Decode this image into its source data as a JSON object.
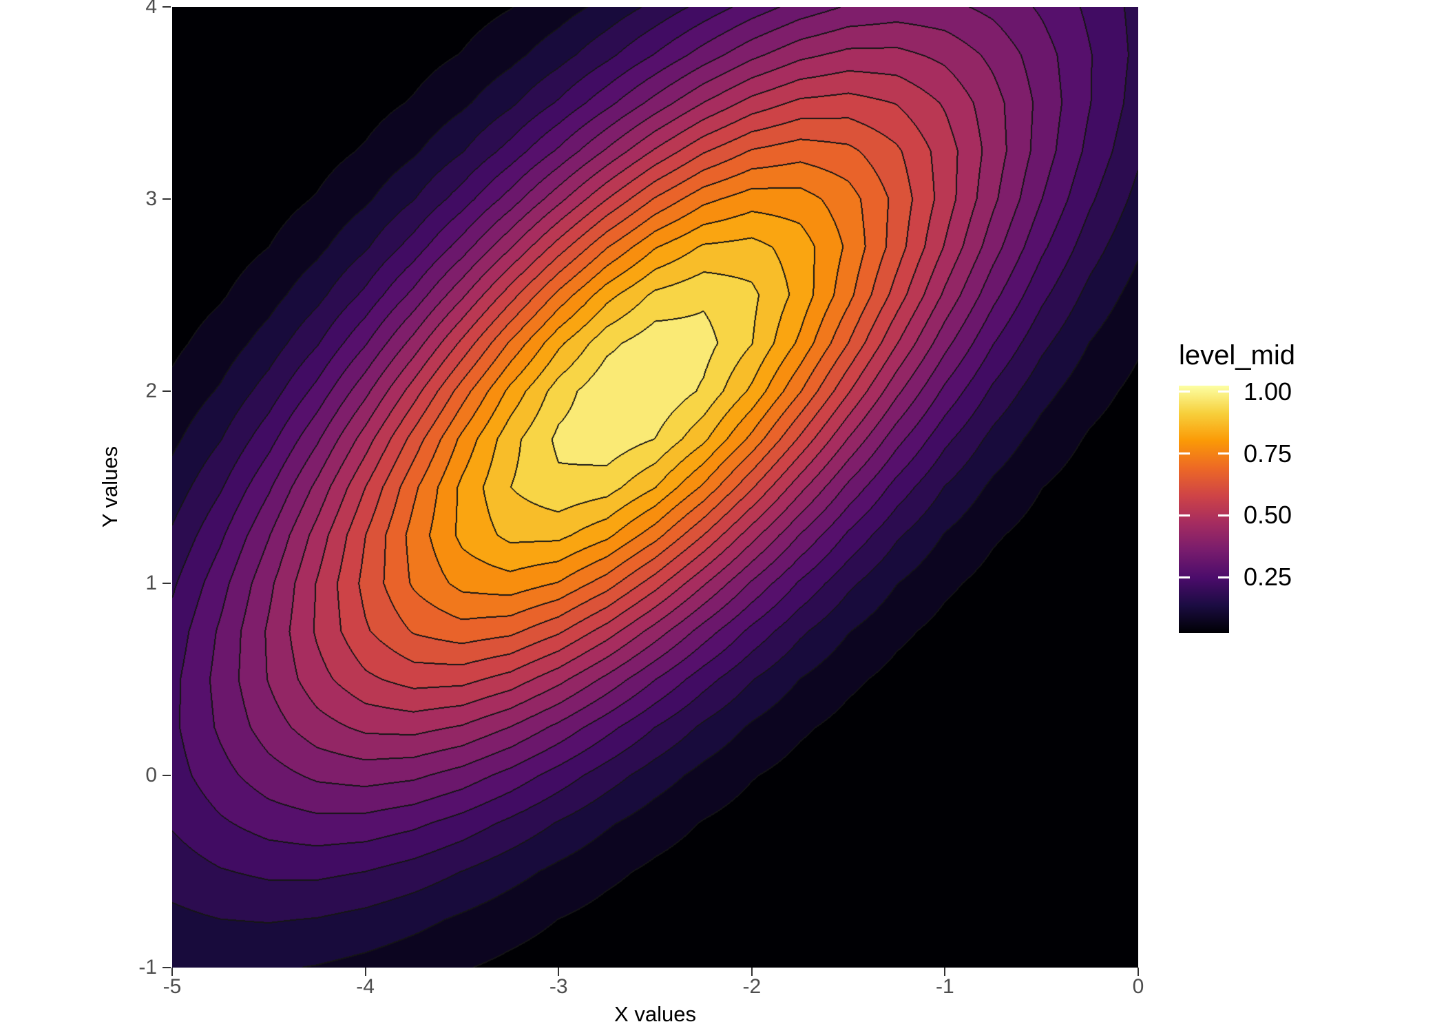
{
  "chart_data": {
    "type": "filled_contour",
    "title": "",
    "xlabel": "X values",
    "ylabel": "Y values",
    "xlim": [
      -5,
      0
    ],
    "ylim": [
      -1,
      4
    ],
    "x_tick_values": [
      -5,
      -4,
      -3,
      -2,
      -1,
      0
    ],
    "x_tick_labels": [
      "-5",
      "-4",
      "-3",
      "-2",
      "-1",
      "0"
    ],
    "y_tick_values": [
      4,
      3,
      2,
      1,
      0,
      -1
    ],
    "y_tick_labels": [
      "4",
      "3",
      "2",
      "1",
      "0",
      "-1"
    ],
    "surface": {
      "description": "bivariate gaussian bump normalized to peak 1.0, elliptical contours tilted along y=x",
      "center_x": -2.6,
      "center_y": 2.0,
      "sigma_x": 1.42,
      "sigma_y": 1.42,
      "rho": 0.7,
      "peak": 1.0,
      "grid_n": 21
    },
    "bands": {
      "break_step": 0.05,
      "min": 0.0,
      "max": 1.0,
      "count": 20,
      "colors": [
        "#000004",
        "#0C0520",
        "#180B3C",
        "#2C0C50",
        "#410C63",
        "#56106C",
        "#6B176C",
        "#7F1E6B",
        "#932665",
        "#A72D5F",
        "#BA3853",
        "#CD4347",
        "#DB5339",
        "#E9632A",
        "#F1781C",
        "#F88E0E",
        "#FAA511",
        "#F8BD29",
        "#F8D546",
        "#FAEA75"
      ]
    },
    "contour_line_color": "#151515",
    "style": {
      "background": "#ffffff",
      "tick_label_color": "#4d4d4d",
      "axis_title_color": "#000000",
      "tick_mark_color": "#333333"
    },
    "legend": {
      "title": "level_mid",
      "tick_labels": [
        "1.00",
        "0.75",
        "0.50",
        "0.25"
      ],
      "tick_rel_positions": [
        0.025,
        0.275,
        0.525,
        0.775
      ],
      "tick_mark_color": "#ffffff",
      "gradient_top_to_bottom": [
        "#FCFFA4",
        "#F7D03C",
        "#FB9A06",
        "#ED6925",
        "#CF4446",
        "#A52C60",
        "#781C6D",
        "#4B0C6B",
        "#1B0C42",
        "#000004"
      ]
    }
  }
}
